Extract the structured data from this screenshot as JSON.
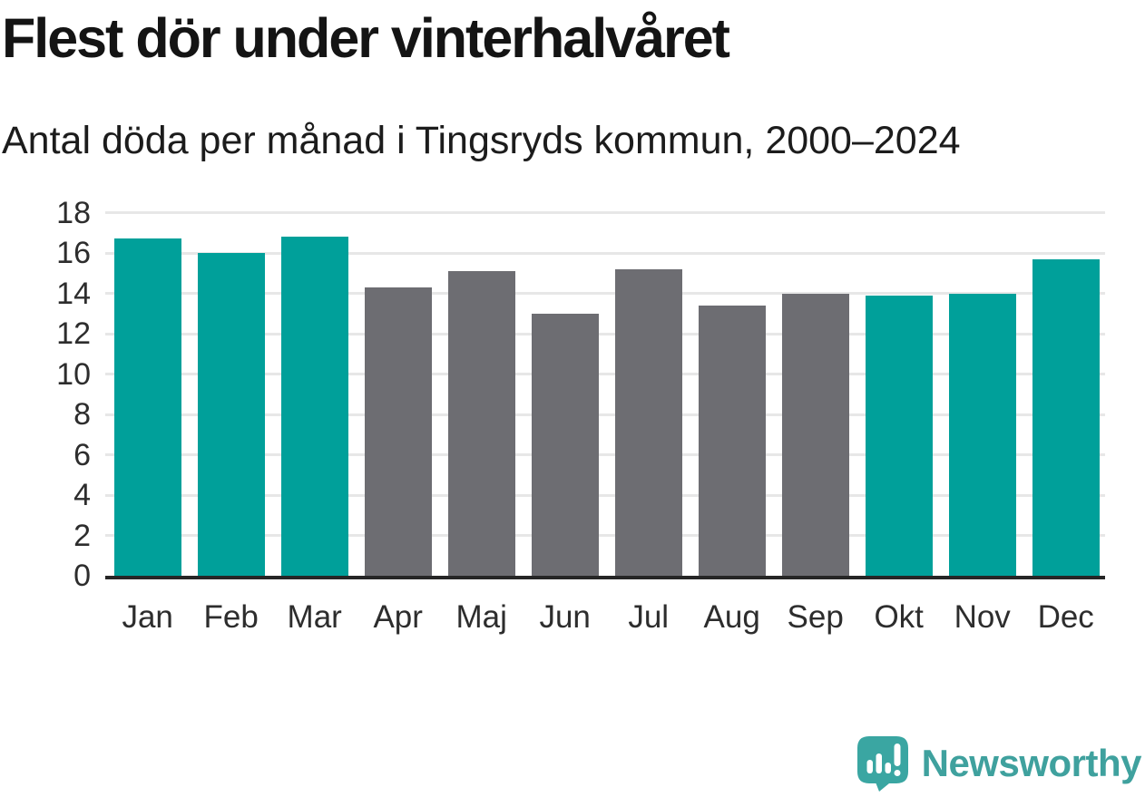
{
  "chart_data": {
    "type": "bar",
    "title": "Flest dör under vinterhalvåret",
    "subtitle": "Antal döda per månad i Tingsryds kommun, 2000–2024",
    "categories": [
      "Jan",
      "Feb",
      "Mar",
      "Apr",
      "Maj",
      "Jun",
      "Jul",
      "Aug",
      "Sep",
      "Okt",
      "Nov",
      "Dec"
    ],
    "values": [
      16.7,
      16.0,
      16.8,
      14.3,
      15.1,
      13.0,
      15.2,
      13.4,
      14.0,
      13.9,
      14.0,
      15.7
    ],
    "bar_palette": [
      "winter",
      "winter",
      "winter",
      "summer",
      "summer",
      "summer",
      "summer",
      "summer",
      "summer",
      "winter",
      "winter",
      "winter"
    ],
    "colors": {
      "winter": "#00a09a",
      "summer": "#6d6d72"
    },
    "xlabel": "",
    "ylabel": "",
    "ylim": [
      0,
      18
    ],
    "ytick_step": 2,
    "grid": "horizontal",
    "legend": "none"
  },
  "footer": {
    "brand": "Newsworthy"
  },
  "theme": {
    "accent_teal": "#00a09a",
    "neutral_gray": "#6d6d72",
    "logo_teal": "#3fa19e",
    "grid_color": "#e7e7e7",
    "axis_color": "#262626",
    "text_color": "#1c1c1c"
  }
}
